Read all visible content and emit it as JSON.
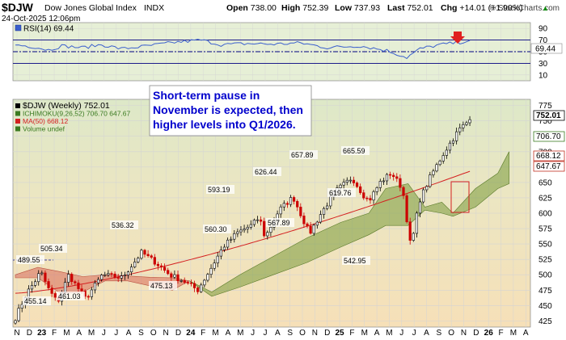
{
  "header": {
    "symbol": "$DJW",
    "name": "Dow Jones Global Index",
    "exchange": "INDX",
    "date": "24-Oct-2025 12:06pm",
    "watermark": "© StockCharts.com",
    "ohlc": [
      {
        "label": "Open",
        "value": "738.00"
      },
      {
        "label": "High",
        "value": "752.39"
      },
      {
        "label": "Low",
        "value": "737.93"
      },
      {
        "label": "Last",
        "value": "752.01"
      },
      {
        "label": "Chg",
        "value": "+14.01 (+1.90%)"
      }
    ],
    "chg_arrow": "▲"
  },
  "colors": {
    "grid": "#d4d4d4",
    "up_candle": "#000000",
    "down_candle": "#cc0000",
    "ma": "#d42020",
    "cloud_bull": "#7a9a3a",
    "cloud_bear": "#d96a5a",
    "rsi_line": "#3a5fcd",
    "rsi_level": "#000080",
    "annotation_text": "#0000cc",
    "marker_red": "#e02020"
  },
  "rsi_panel": {
    "legend": "RSI(14) 69.44",
    "ticks": [
      "90",
      "70",
      "50",
      "30",
      "10"
    ],
    "current_label": "69.44"
  },
  "price_panel": {
    "legend": [
      {
        "text": "$DJW (Weekly) 752.01",
        "color": "#000000",
        "icon": "candle-icon"
      },
      {
        "text": "ICHIMOKU(9,26,52) 706.70 647.67",
        "color": "#3a7a20",
        "icon": "ichimoku-icon"
      },
      {
        "text": "MA(50) 668.12",
        "color": "#d42020",
        "icon": "line-icon"
      },
      {
        "text": "Volume undef",
        "color": "#3a7a20",
        "icon": "volume-icon"
      }
    ],
    "annotation": "Short-term pause in November is expected, then higher levels into Q1/2026.",
    "annotation_lines": [
      "Short-term pause in",
      "November is expected, then",
      "higher levels into Q1/2026."
    ],
    "y_ticks": [
      "775",
      "750",
      "725",
      "700",
      "675",
      "650",
      "625",
      "600",
      "575",
      "550",
      "525",
      "500",
      "475",
      "450",
      "425"
    ],
    "right_tags": [
      {
        "text": "752.01",
        "style": "dark"
      },
      {
        "text": "706.70",
        "style": "green"
      },
      {
        "text": "668.12",
        "style": "red"
      },
      {
        "text": "647.67",
        "style": "red"
      }
    ],
    "point_labels": [
      "505.34",
      "489.55",
      "455.14",
      "461.03",
      "536.32",
      "475.13",
      "593.19",
      "560.30",
      "626.44",
      "567.89",
      "657.89",
      "619.76",
      "665.59",
      "542.95"
    ]
  },
  "x_axis": {
    "labels": [
      "N",
      "D",
      "23",
      "F",
      "M",
      "A",
      "M",
      "J",
      "J",
      "A",
      "S",
      "O",
      "N",
      "D",
      "24",
      "F",
      "M",
      "A",
      "M",
      "J",
      "J",
      "A",
      "S",
      "O",
      "N",
      "D",
      "25",
      "F",
      "M",
      "A",
      "M",
      "J",
      "J",
      "A",
      "S",
      "O",
      "N",
      "D",
      "26",
      "F",
      "M",
      "A"
    ],
    "bold": [
      "23",
      "24",
      "25",
      "26"
    ]
  },
  "chart_data": [
    {
      "type": "line",
      "title": "RSI(14)",
      "x": [
        "2022-11",
        "2023-01",
        "2023-03",
        "2023-05",
        "2023-07",
        "2023-09",
        "2023-11",
        "2024-01",
        "2024-03",
        "2024-05",
        "2024-07",
        "2024-09",
        "2024-11",
        "2025-01",
        "2025-03",
        "2025-04",
        "2025-06",
        "2025-08",
        "2025-10"
      ],
      "series": [
        {
          "values": [
            62,
            58,
            52,
            57,
            62,
            55,
            60,
            66,
            70,
            62,
            64,
            63,
            65,
            57,
            52,
            40,
            62,
            66,
            69.44
          ]
        }
      ],
      "ylim": [
        0,
        100
      ],
      "levels": [
        70,
        50,
        30
      ]
    },
    {
      "type": "line",
      "title": "$DJW (Weekly)",
      "x": [
        "2022-10",
        "2022-11",
        "2022-12",
        "2023-01",
        "2023-02",
        "2023-03",
        "2023-04",
        "2023-05",
        "2023-06",
        "2023-07",
        "2023-08",
        "2023-09",
        "2023-10",
        "2023-11",
        "2023-12",
        "2024-01",
        "2024-02",
        "2024-03",
        "2024-04",
        "2024-05",
        "2024-06",
        "2024-07",
        "2024-08",
        "2024-09",
        "2024-10",
        "2024-11",
        "2024-12",
        "2025-01",
        "2025-02",
        "2025-03",
        "2025-04",
        "2025-05",
        "2025-06",
        "2025-07",
        "2025-08",
        "2025-09",
        "2025-10"
      ],
      "series": [
        {
          "name": "$DJW (Weekly)",
          "values": [
            430,
            470,
            489.55,
            505.34,
            470,
            461.03,
            490,
            500,
            536.32,
            530,
            500,
            490,
            475.13,
            520,
            545,
            550,
            570,
            593.19,
            560.3,
            585,
            595,
            610,
            626.44,
            600,
            567.89,
            640,
            657.89,
            650,
            665.59,
            620,
            542.95,
            610,
            630,
            665,
            690,
            720,
            752.01
          ]
        },
        {
          "name": "MA(50)",
          "values": [
            468,
            470,
            475,
            478,
            480,
            483,
            486,
            490,
            494,
            498,
            500,
            502,
            505,
            510,
            515,
            522,
            530,
            540,
            548,
            556,
            562,
            568,
            574,
            580,
            586,
            590,
            596,
            602,
            608,
            612,
            616,
            620,
            628,
            638,
            650,
            660,
            668.12
          ]
        }
      ],
      "ylim": [
        415,
        785
      ],
      "current": 752.01,
      "ichimoku": {
        "span_a": 706.7,
        "span_b": 647.67
      }
    }
  ]
}
